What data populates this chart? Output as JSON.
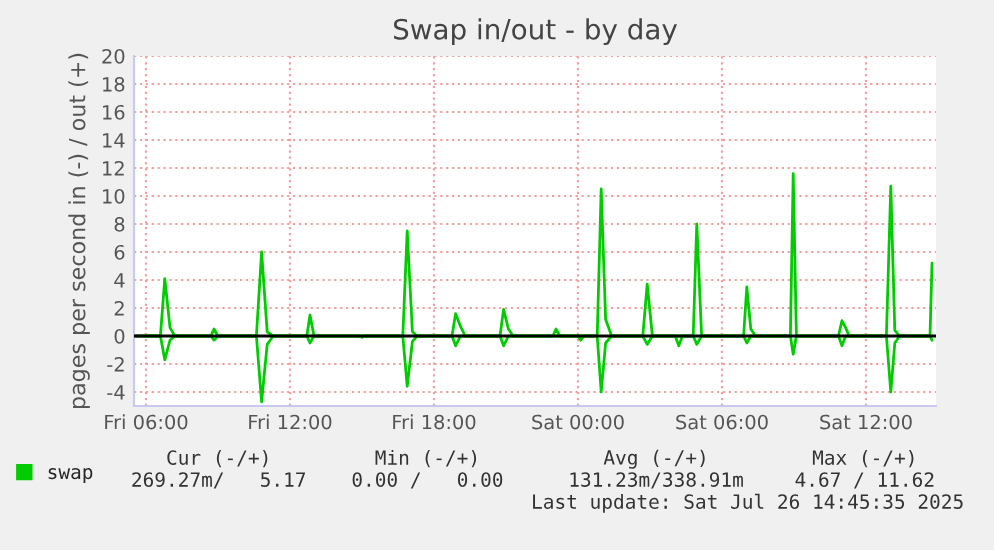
{
  "chart_data": {
    "type": "line",
    "title": "Swap in/out - by day",
    "ylabel": "pages per second in (-) / out (+)",
    "xlim": [
      "2025-07-25T05:30",
      "2025-07-26T14:55"
    ],
    "xticks": [
      {
        "value": "2025-07-25T06:00",
        "label": "Fri 06:00"
      },
      {
        "value": "2025-07-25T12:00",
        "label": "Fri 12:00"
      },
      {
        "value": "2025-07-25T18:00",
        "label": "Fri 18:00"
      },
      {
        "value": "2025-07-26T00:00",
        "label": "Sat 00:00"
      },
      {
        "value": "2025-07-26T06:00",
        "label": "Sat 06:00"
      },
      {
        "value": "2025-07-26T12:00",
        "label": "Sat 12:00"
      }
    ],
    "ylim": [
      -5,
      20
    ],
    "yticks": [
      -4,
      -2,
      0,
      2,
      4,
      6,
      8,
      10,
      12,
      14,
      16,
      18,
      20
    ],
    "grid": true,
    "legend": "bottom left",
    "marker": "none",
    "line_style": "solid",
    "ref_lines": [
      {
        "axis": "y",
        "value": 0,
        "color": "#000000"
      }
    ],
    "series": [
      {
        "name": "swap",
        "color": "#00cc00",
        "x": [
          "2025-07-25T05:30",
          "2025-07-25T06:36",
          "2025-07-25T06:47",
          "2025-07-25T07:00",
          "2025-07-25T07:12",
          "2025-07-25T08:42",
          "2025-07-25T08:50",
          "2025-07-25T09:00",
          "2025-07-25T10:36",
          "2025-07-25T10:49",
          "2025-07-25T11:03",
          "2025-07-25T11:18",
          "2025-07-25T12:42",
          "2025-07-25T12:50",
          "2025-07-25T13:00",
          "2025-07-25T16:42",
          "2025-07-25T16:53",
          "2025-07-25T17:06",
          "2025-07-25T17:18",
          "2025-07-25T18:45",
          "2025-07-25T18:54",
          "2025-07-25T19:06",
          "2025-07-25T19:18",
          "2025-07-25T20:45",
          "2025-07-25T20:54",
          "2025-07-25T21:06",
          "2025-07-25T21:18",
          "2025-07-25T22:57",
          "2025-07-25T23:05",
          "2025-07-25T23:15",
          "2025-07-26T00:48",
          "2025-07-26T00:58",
          "2025-07-26T01:09",
          "2025-07-26T01:24",
          "2025-07-26T02:42",
          "2025-07-26T02:53",
          "2025-07-26T03:06",
          "2025-07-26T04:48",
          "2025-07-26T04:57",
          "2025-07-26T05:09",
          "2025-07-26T06:54",
          "2025-07-26T07:02",
          "2025-07-26T07:12",
          "2025-07-26T07:24",
          "2025-07-26T08:51",
          "2025-07-26T08:58",
          "2025-07-26T09:06",
          "2025-07-26T10:51",
          "2025-07-26T11:00",
          "2025-07-26T11:09",
          "2025-07-26T11:18",
          "2025-07-26T12:51",
          "2025-07-26T13:02",
          "2025-07-26T13:12",
          "2025-07-26T13:24",
          "2025-07-26T14:40",
          "2025-07-26T14:45"
        ],
        "values": [
          0,
          0,
          4.1,
          0.6,
          0,
          0,
          0.5,
          0,
          0,
          6.0,
          0.3,
          0,
          0,
          1.5,
          0,
          0,
          7.5,
          0.3,
          0,
          0,
          1.6,
          0.7,
          0,
          0,
          1.9,
          0.5,
          0,
          0,
          0.5,
          0,
          0,
          10.5,
          1.2,
          0,
          0,
          3.7,
          0,
          0,
          8.0,
          0,
          0,
          3.5,
          0.5,
          0,
          0,
          11.6,
          0,
          0,
          1.1,
          0.6,
          0,
          0,
          10.7,
          0.4,
          0,
          0,
          5.2
        ]
      },
      {
        "color": "#00cc00",
        "x": [
          "2025-07-25T05:30",
          "2025-07-25T06:36",
          "2025-07-25T06:47",
          "2025-07-25T07:00",
          "2025-07-25T07:12",
          "2025-07-25T08:42",
          "2025-07-25T08:50",
          "2025-07-25T09:00",
          "2025-07-25T10:36",
          "2025-07-25T10:49",
          "2025-07-25T11:03",
          "2025-07-25T11:18",
          "2025-07-25T12:42",
          "2025-07-25T12:50",
          "2025-07-25T13:00",
          "2025-07-25T14:54",
          "2025-07-25T15:00",
          "2025-07-25T15:06",
          "2025-07-25T16:42",
          "2025-07-25T16:53",
          "2025-07-25T17:06",
          "2025-07-25T17:18",
          "2025-07-25T18:45",
          "2025-07-25T18:54",
          "2025-07-25T19:06",
          "2025-07-25T20:45",
          "2025-07-25T20:54",
          "2025-07-25T21:06",
          "2025-07-26T00:00",
          "2025-07-26T00:07",
          "2025-07-26T00:15",
          "2025-07-26T00:48",
          "2025-07-26T00:58",
          "2025-07-26T01:09",
          "2025-07-26T01:24",
          "2025-07-26T02:42",
          "2025-07-26T02:53",
          "2025-07-26T03:06",
          "2025-07-26T04:03",
          "2025-07-26T04:12",
          "2025-07-26T04:21",
          "2025-07-26T04:48",
          "2025-07-26T04:57",
          "2025-07-26T05:09",
          "2025-07-26T06:54",
          "2025-07-26T07:02",
          "2025-07-26T07:12",
          "2025-07-26T08:51",
          "2025-07-26T08:58",
          "2025-07-26T09:06",
          "2025-07-26T10:51",
          "2025-07-26T11:00",
          "2025-07-26T11:09",
          "2025-07-26T12:51",
          "2025-07-26T13:02",
          "2025-07-26T13:12",
          "2025-07-26T13:24",
          "2025-07-26T14:40",
          "2025-07-26T14:45"
        ],
        "values": [
          0,
          0,
          -1.7,
          -0.3,
          0,
          0,
          -0.3,
          0,
          0,
          -4.7,
          -0.6,
          0,
          0,
          -0.5,
          0,
          0,
          -0.1,
          0,
          0,
          -3.6,
          -0.4,
          0,
          0,
          -0.7,
          0,
          0,
          -0.7,
          0,
          0,
          -0.3,
          0,
          0,
          -4.0,
          -0.5,
          0,
          0,
          -0.6,
          0,
          0,
          -0.7,
          0,
          0,
          -0.6,
          0,
          0,
          -0.5,
          0,
          0,
          -1.3,
          0,
          0,
          -0.7,
          0,
          0,
          -4.0,
          -0.5,
          0,
          0,
          -0.3
        ]
      }
    ],
    "annotations": [
      "Cur (-/+)",
      "Min (-/+)",
      "Avg (-/+)",
      "Max (-/+)",
      "269.27m/   5.17",
      "0.00 /   0.00",
      "131.23m/338.91m",
      "4.67 / 11.62",
      "Last update: Sat Jul 26 14:45:35 2025"
    ]
  }
}
